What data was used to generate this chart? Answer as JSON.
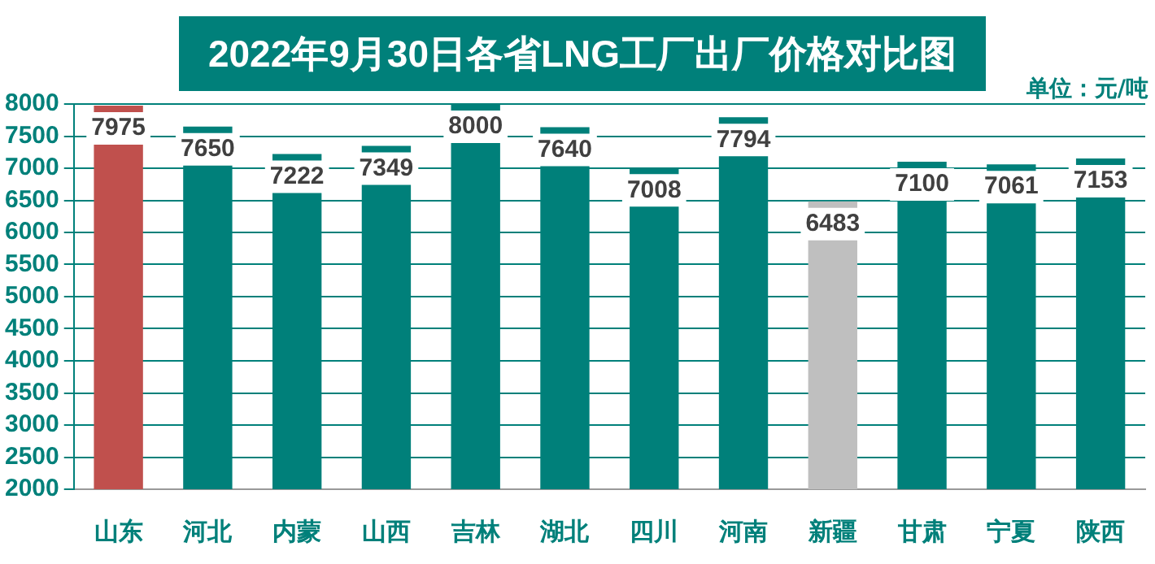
{
  "chart_data": {
    "type": "bar",
    "title": "2022年9月30日各省LNG工厂出厂价格对比图",
    "annotations": [
      "单位：元/吨"
    ],
    "categories": [
      "山东",
      "河北",
      "内蒙",
      "山西",
      "吉林",
      "湖北",
      "四川",
      "河南",
      "新疆",
      "甘肃",
      "宁夏",
      "陕西"
    ],
    "values": [
      7975,
      7650,
      7222,
      7349,
      8000,
      7640,
      7008,
      7794,
      6483,
      7100,
      7061,
      7153
    ],
    "colors": [
      "#c0504d",
      "#00807a",
      "#00807a",
      "#00807a",
      "#00807a",
      "#00807a",
      "#00807a",
      "#00807a",
      "#bfbfbf",
      "#00807a",
      "#00807a",
      "#00807a"
    ],
    "ylim": [
      2000,
      8000
    ],
    "yticks": [
      2000,
      2500,
      3000,
      3500,
      4000,
      4500,
      5000,
      5500,
      6000,
      6500,
      7000,
      7500,
      8000
    ],
    "grid": "y",
    "legend": false,
    "data_labels": true
  }
}
